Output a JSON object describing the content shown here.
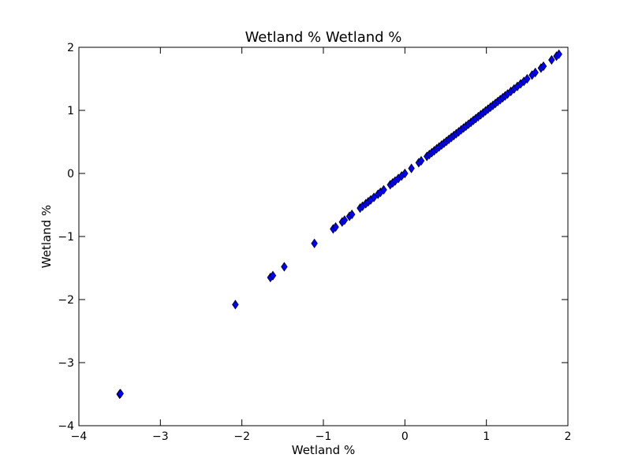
{
  "chart_data": {
    "type": "scatter",
    "title": "Wetland % Wetland %",
    "xlabel": "Wetland %",
    "ylabel": "Wetland %",
    "xlim": [
      -4,
      2
    ],
    "ylim": [
      -4,
      2
    ],
    "xticks": [
      -4,
      -3,
      -2,
      -1,
      0,
      1,
      2
    ],
    "yticks": [
      -4,
      -3,
      -2,
      -1,
      0,
      1,
      2
    ],
    "xtick_labels": [
      "−4",
      "−3",
      "−2",
      "−1",
      "0",
      "1",
      "2"
    ],
    "ytick_labels": [
      "−4",
      "−3",
      "−2",
      "−1",
      "0",
      "1",
      "2"
    ],
    "grid": false,
    "marker": "diamond",
    "marker_color": "#0000ff",
    "marker_edge_color": "#000000",
    "series": [
      {
        "x": [
          -3.5,
          -3.49,
          -2.08,
          -1.65,
          -1.62,
          -1.48,
          -1.11,
          -0.88,
          -0.85,
          -0.77,
          -0.74,
          -0.68,
          -0.65,
          -0.55,
          -0.52,
          -0.48,
          -0.45,
          -0.42,
          -0.38,
          -0.33,
          -0.3,
          -0.26,
          -0.18,
          -0.15,
          -0.12,
          -0.08,
          -0.04,
          0.0,
          0.08,
          0.17,
          0.2,
          0.27,
          0.3,
          0.33,
          0.36,
          0.39,
          0.42,
          0.45,
          0.48,
          0.51,
          0.54,
          0.57,
          0.6,
          0.63,
          0.66,
          0.69,
          0.72,
          0.75,
          0.78,
          0.81,
          0.84,
          0.87,
          0.9,
          0.93,
          0.96,
          0.99,
          1.02,
          1.05,
          1.08,
          1.11,
          1.14,
          1.17,
          1.2,
          1.23,
          1.26,
          1.3,
          1.34,
          1.38,
          1.42,
          1.46,
          1.5,
          1.56,
          1.6,
          1.67,
          1.7,
          1.8,
          1.86,
          1.89
        ],
        "y": [
          -3.5,
          -3.49,
          -2.08,
          -1.65,
          -1.62,
          -1.48,
          -1.11,
          -0.88,
          -0.85,
          -0.77,
          -0.74,
          -0.68,
          -0.65,
          -0.55,
          -0.52,
          -0.48,
          -0.45,
          -0.42,
          -0.38,
          -0.33,
          -0.3,
          -0.26,
          -0.18,
          -0.15,
          -0.12,
          -0.08,
          -0.04,
          0.0,
          0.08,
          0.17,
          0.2,
          0.27,
          0.3,
          0.33,
          0.36,
          0.39,
          0.42,
          0.45,
          0.48,
          0.51,
          0.54,
          0.57,
          0.6,
          0.63,
          0.66,
          0.69,
          0.72,
          0.75,
          0.78,
          0.81,
          0.84,
          0.87,
          0.9,
          0.93,
          0.96,
          0.99,
          1.02,
          1.05,
          1.08,
          1.11,
          1.14,
          1.17,
          1.2,
          1.23,
          1.26,
          1.3,
          1.34,
          1.38,
          1.42,
          1.46,
          1.5,
          1.56,
          1.6,
          1.67,
          1.7,
          1.8,
          1.86,
          1.89
        ]
      }
    ]
  }
}
